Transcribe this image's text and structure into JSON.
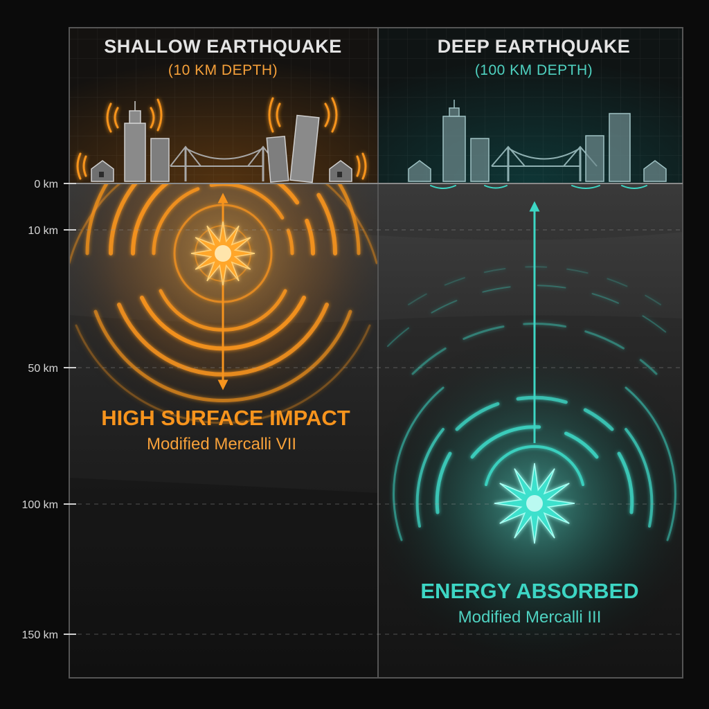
{
  "colors": {
    "shallow": "#f7941d",
    "shallow_text": "#f7a13a",
    "deep": "#3dd6c4",
    "deep_text": "#4fd2c1",
    "title_text": "#e4e4e4",
    "background": "#0b0b0b"
  },
  "depth_axis": {
    "ticks": [
      {
        "depth": 0,
        "label": "0 km"
      },
      {
        "depth": 10,
        "label": "10 km"
      },
      {
        "depth": 50,
        "label": "50 km"
      },
      {
        "depth": 100,
        "label": "100 km"
      },
      {
        "depth": 150,
        "label": "150 km"
      }
    ]
  },
  "shallow": {
    "title": "SHALLOW EARTHQUAKE",
    "subtitle": "(10 KM DEPTH)",
    "depth_km": 10,
    "impact_title": "HIGH SURFACE IMPACT",
    "impact_subtitle": "Modified Mercalli VII",
    "focus_icon": "burst-star-icon",
    "city_icon": "shaking-city-icon"
  },
  "deep": {
    "title": "DEEP EARTHQUAKE",
    "subtitle": "(100 KM DEPTH)",
    "depth_km": 100,
    "impact_title": "ENERGY ABSORBED",
    "impact_subtitle": "Modified Mercalli III",
    "focus_icon": "burst-star-icon",
    "city_icon": "calm-city-icon"
  }
}
